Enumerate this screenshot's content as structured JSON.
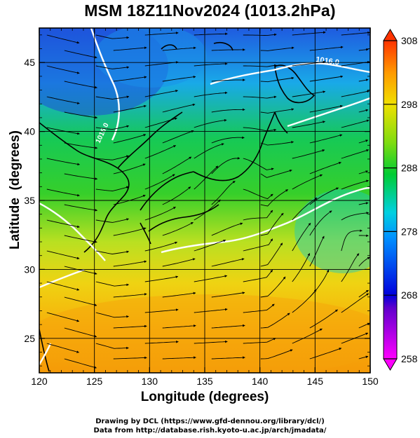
{
  "figure": {
    "title": "MSM 18Z11Nov2024 (1013.2hPa)",
    "xlabel": "Longitude (degrees)",
    "ylabel": "Latitude  (degrees)",
    "credit_line1": "Drawing by DCL (https://www.gfd-dennou.org/library/dcl/)",
    "credit_line2": "Data from http://database.rish.kyoto-u.ac.jp/arch/jmadata/"
  },
  "map": {
    "region": "East Asia / Japan",
    "lon_range": [
      120,
      150
    ],
    "lat_range": [
      22.5,
      47.5
    ],
    "x_ticks": [
      120,
      125,
      130,
      135,
      140,
      145,
      150
    ],
    "y_ticks": [
      25,
      30,
      35,
      40,
      45
    ],
    "gridlines": true,
    "contour_labels": [
      "1016.0",
      "1016.0"
    ],
    "colorbar": {
      "ticks": [
        258,
        268,
        278,
        288,
        298,
        308
      ],
      "range": [
        258,
        308
      ],
      "colors": [
        "#ff00ff",
        "#0000dd",
        "#00c8ff",
        "#00cc33",
        "#f0e000",
        "#ff9900",
        "#ff3300"
      ]
    }
  }
}
